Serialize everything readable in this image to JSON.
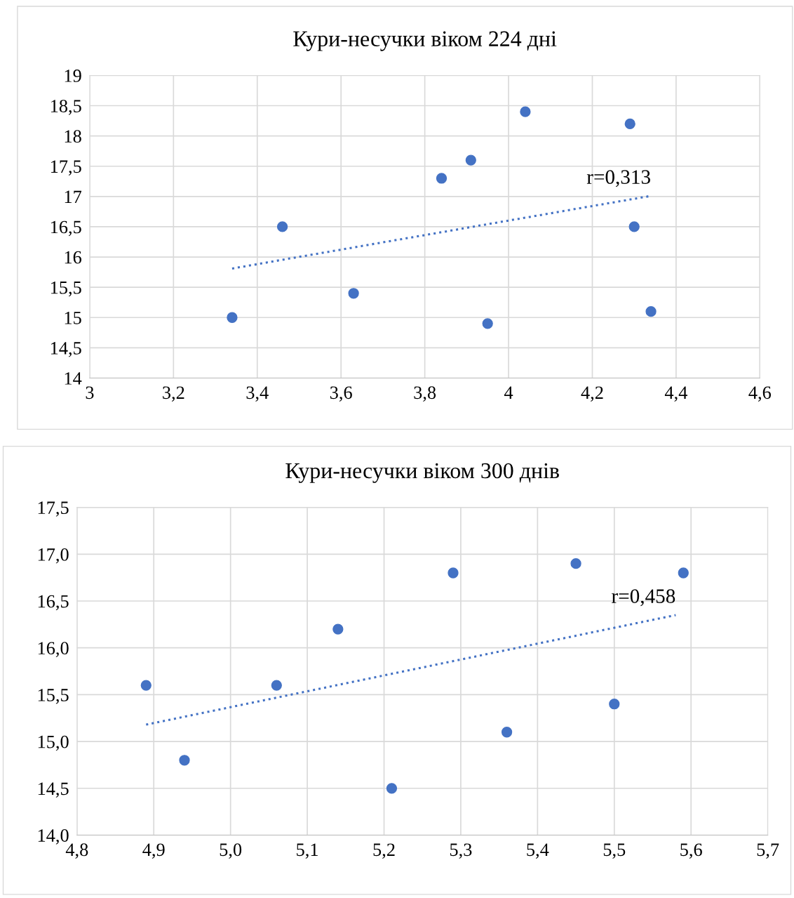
{
  "chart_data": [
    {
      "type": "scatter",
      "title": "Кури-несучки віком 224 дні",
      "grid": true,
      "marker": "circle",
      "xlim": [
        3,
        4.6
      ],
      "xticks": [
        3,
        {
          "value": 3.2,
          "label": "3,2"
        },
        {
          "value": 3.4,
          "label": "3,4"
        },
        {
          "value": 3.6,
          "label": "3,6"
        },
        {
          "value": 3.8,
          "label": "3,8"
        },
        4,
        {
          "value": 4.2,
          "label": "4,2"
        },
        {
          "value": 4.4,
          "label": "4,4"
        },
        {
          "value": 4.6,
          "label": "4,6"
        }
      ],
      "ylim": [
        14,
        19
      ],
      "yticks": [
        14,
        {
          "value": 14.5,
          "label": "14,5"
        },
        15,
        {
          "value": 15.5,
          "label": "15,5"
        },
        16,
        {
          "value": 16.5,
          "label": "16,5"
        },
        17,
        {
          "value": 17.5,
          "label": "17,5"
        },
        18,
        {
          "value": 18.5,
          "label": "18,5"
        },
        19
      ],
      "series": [
        {
          "type": "scatter",
          "color": "#4472c4",
          "x": [
            3.34,
            3.46,
            3.63,
            3.84,
            3.91,
            3.95,
            4.04,
            4.29,
            4.3,
            4.34
          ],
          "values": [
            15.0,
            16.5,
            15.4,
            17.3,
            17.6,
            14.9,
            18.4,
            18.2,
            16.5,
            15.1
          ]
        },
        {
          "type": "line",
          "color": "#4472c4",
          "line_style": "dotted",
          "marker": "none",
          "x": [
            3.34,
            4.34
          ],
          "values": [
            15.81,
            17.01
          ]
        }
      ],
      "annotations": [
        {
          "text": "r=0,313",
          "x": 4.34,
          "y": 17.01
        }
      ]
    },
    {
      "type": "scatter",
      "title": "Кури-несучки віком 300 днів",
      "grid": true,
      "marker": "circle",
      "xlim": [
        4.8,
        5.7
      ],
      "xticks": [
        {
          "value": 4.8,
          "label": "4,8"
        },
        {
          "value": 4.9,
          "label": "4,9"
        },
        {
          "value": 5.0,
          "label": "5,0"
        },
        {
          "value": 5.1,
          "label": "5,1"
        },
        {
          "value": 5.2,
          "label": "5,2"
        },
        {
          "value": 5.3,
          "label": "5,3"
        },
        {
          "value": 5.4,
          "label": "5,4"
        },
        {
          "value": 5.5,
          "label": "5,5"
        },
        {
          "value": 5.6,
          "label": "5,6"
        },
        {
          "value": 5.7,
          "label": "5,7"
        }
      ],
      "ylim": [
        14,
        17.5
      ],
      "yticks": [
        {
          "value": 14.0,
          "label": "14,0"
        },
        {
          "value": 14.5,
          "label": "14,5"
        },
        {
          "value": 15.0,
          "label": "15,0"
        },
        {
          "value": 15.5,
          "label": "15,5"
        },
        {
          "value": 16.0,
          "label": "16,0"
        },
        {
          "value": 16.5,
          "label": "16,5"
        },
        {
          "value": 17.0,
          "label": "17,0"
        },
        {
          "value": 17.5,
          "label": "17,5"
        }
      ],
      "series": [
        {
          "type": "scatter",
          "color": "#4472c4",
          "x": [
            4.89,
            4.94,
            5.06,
            5.14,
            5.21,
            5.29,
            5.36,
            5.45,
            5.5,
            5.59
          ],
          "values": [
            15.6,
            14.8,
            15.6,
            16.2,
            14.5,
            16.8,
            15.1,
            16.9,
            15.4,
            16.8
          ]
        },
        {
          "type": "line",
          "color": "#4472c4",
          "line_style": "dotted",
          "marker": "none",
          "x": [
            4.89,
            5.58
          ],
          "values": [
            15.18,
            16.35
          ]
        }
      ],
      "annotations": [
        {
          "text": "r=0,458",
          "x": 5.58,
          "y": 16.35
        }
      ]
    }
  ]
}
